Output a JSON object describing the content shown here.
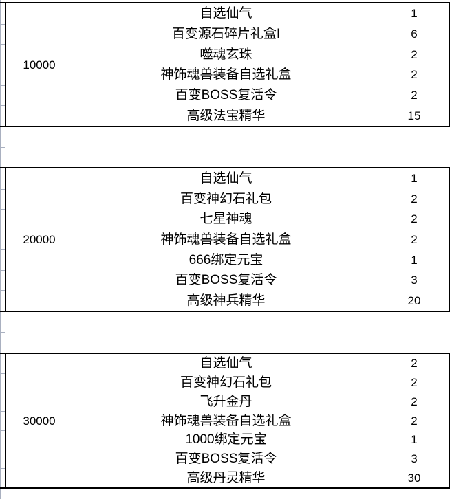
{
  "table": {
    "blocks": [
      {
        "amount": "10000",
        "rows": [
          {
            "item": "自选仙气",
            "qty": "1"
          },
          {
            "item": "百变源石碎片礼盒I",
            "qty": "6"
          },
          {
            "item": "噬魂玄珠",
            "qty": "2"
          },
          {
            "item": "神饰魂兽装备自选礼盒",
            "qty": "2"
          },
          {
            "item": "百变BOSS复活令",
            "qty": "2"
          },
          {
            "item": "高级法宝精华",
            "qty": "15"
          }
        ]
      },
      {
        "amount": "20000",
        "rows": [
          {
            "item": "自选仙气",
            "qty": "1"
          },
          {
            "item": "百变神幻石礼包",
            "qty": "2"
          },
          {
            "item": "七星神魂",
            "qty": "2"
          },
          {
            "item": "神饰魂兽装备自选礼盒",
            "qty": "2"
          },
          {
            "item": "666绑定元宝",
            "qty": "1"
          },
          {
            "item": "百变BOSS复活令",
            "qty": "3"
          },
          {
            "item": "高级神兵精华",
            "qty": "20"
          }
        ]
      },
      {
        "amount": "30000",
        "rows": [
          {
            "item": "自选仙气",
            "qty": "2"
          },
          {
            "item": "百变神幻石礼包",
            "qty": "2"
          },
          {
            "item": "飞升金丹",
            "qty": "2"
          },
          {
            "item": "神饰魂兽装备自选礼盒",
            "qty": "2"
          },
          {
            "item": "1000绑定元宝",
            "qty": "1"
          },
          {
            "item": "百变BOSS复活令",
            "qty": "3"
          },
          {
            "item": "高级丹灵精华",
            "qty": "30"
          }
        ]
      }
    ]
  },
  "colors": {
    "border": "#000000",
    "gridline": "#a9b0c0",
    "text": "#000000",
    "background": "#ffffff"
  }
}
